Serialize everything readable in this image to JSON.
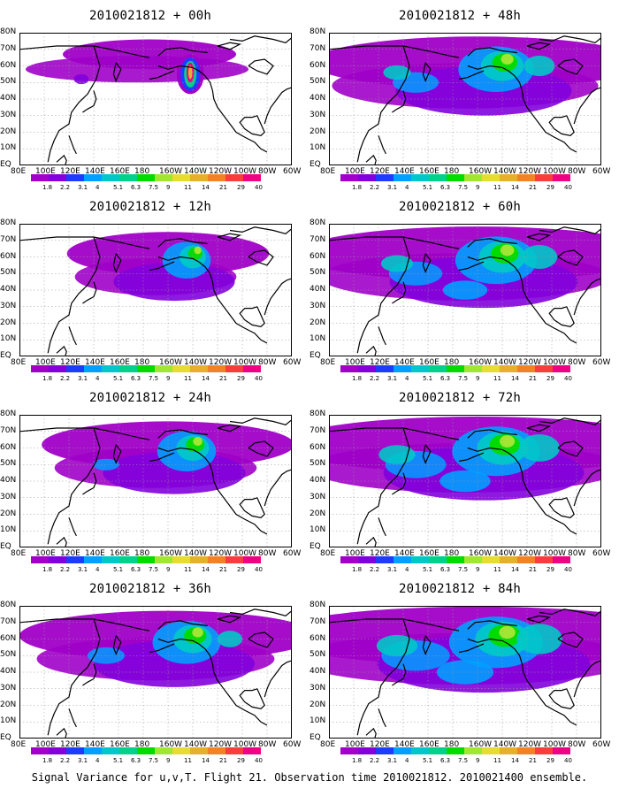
{
  "panels": [
    {
      "id": "p00",
      "title": "2010021812 + 00h",
      "intensity": 0.0
    },
    {
      "id": "p48",
      "title": "2010021812 + 48h",
      "intensity": 0.62
    },
    {
      "id": "p12",
      "title": "2010021812 + 12h",
      "intensity": 0.18
    },
    {
      "id": "p60",
      "title": "2010021812 + 60h",
      "intensity": 0.72
    },
    {
      "id": "p24",
      "title": "2010021812 + 24h",
      "intensity": 0.35
    },
    {
      "id": "p72",
      "title": "2010021812 + 72h",
      "intensity": 0.82
    },
    {
      "id": "p36",
      "title": "2010021812 + 36h",
      "intensity": 0.5
    },
    {
      "id": "p84",
      "title": "2010021812 + 84h",
      "intensity": 0.92
    }
  ],
  "y_axis_labels": [
    "80N",
    "70N",
    "60N",
    "50N",
    "40N",
    "30N",
    "20N",
    "10N",
    "EQ"
  ],
  "x_axis_labels": [
    "80E",
    "100E",
    "120E",
    "140E",
    "160E",
    "180",
    "160W",
    "140W",
    "120W",
    "100W",
    "80W",
    "60W"
  ],
  "colorbar": {
    "labels": [
      "1.8",
      "2.2",
      "3.1",
      "4",
      "5.1",
      "6.3",
      "7.5",
      "9",
      "11",
      "14",
      "21",
      "29",
      "40"
    ],
    "colors": [
      "#a000c8",
      "#8200dc",
      "#1e3cff",
      "#00a0ff",
      "#00c8c8",
      "#00d28c",
      "#00dc00",
      "#a0e632",
      "#e6dc32",
      "#e6af2d",
      "#f08228",
      "#fa3c3c",
      "#f00082"
    ]
  },
  "caption": "Signal Variance for u,v,T. Flight 21. Observation time 2010021812. 2010021400 ensemble.",
  "map_colors": {
    "land": "#000000",
    "grid": "#999999",
    "ocean": "#ffffff"
  }
}
